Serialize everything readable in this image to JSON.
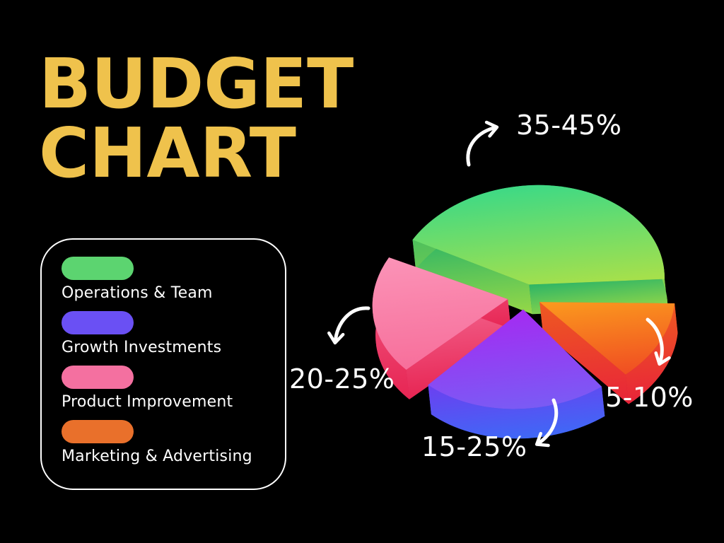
{
  "background_color": "#000000",
  "title": {
    "line1": "BUDGET",
    "line2": "CHART",
    "color": "#EFC24C"
  },
  "legend": {
    "items": [
      {
        "id": "operations-team",
        "label": "Operations & Team",
        "color": "#5CD470"
      },
      {
        "id": "growth-investments",
        "label": "Growth Investments",
        "color": "#6A50F4"
      },
      {
        "id": "product-improvement",
        "label": "Product Improvement",
        "color": "#F470A0"
      },
      {
        "id": "marketing-advertising",
        "label": "Marketing & Advertising",
        "color": "#E9702B"
      }
    ]
  },
  "chart_data": {
    "type": "pie",
    "variant": "3d-exploded",
    "title": "Budget Chart",
    "legend_position": "left",
    "labels_color": "#FFFFFF",
    "slices": [
      {
        "id": "operations-team",
        "label": "Operations & Team",
        "range_label": "35-45%",
        "value_min": 35,
        "value_max": 45,
        "label_position": "top",
        "start_angle": -55,
        "end_angle": 95,
        "color_top": [
          "#3ED985",
          "#A8E04A"
        ],
        "color_side": [
          "#2EB566",
          "#96D847"
        ],
        "color_bottom": "#27984F"
      },
      {
        "id": "growth-investments",
        "label": "Growth Investments",
        "range_label": "15-25%",
        "value_min": 15,
        "value_max": 25,
        "label_position": "bottom",
        "start_angle": 149,
        "end_angle": 229,
        "color_top": [
          "#A42BF2",
          "#7A5BF4"
        ],
        "color_side": [
          "#6C3FF0",
          "#3F68F6"
        ],
        "color_bottom": "#3347D8"
      },
      {
        "id": "product-improvement",
        "label": "Product Improvement",
        "range_label": "20-25%",
        "value_min": 20,
        "value_max": 25,
        "label_position": "left",
        "start_angle": 233,
        "end_angle": 303,
        "color_top": [
          "#FB93B7",
          "#F76F9B"
        ],
        "color_side": [
          "#F2608A",
          "#E72553"
        ],
        "color_bottom": "#CF1C4C"
      },
      {
        "id": "marketing-advertising",
        "label": "Marketing & Advertising",
        "range_label": "5-10%",
        "value_min": 5,
        "value_max": 10,
        "label_position": "right",
        "start_angle": 99,
        "end_angle": 145,
        "color_top": [
          "#FB9A1E",
          "#F04D22"
        ],
        "color_side": [
          "#EE5A21",
          "#E82439"
        ],
        "color_bottom": "#C81C33"
      }
    ]
  }
}
